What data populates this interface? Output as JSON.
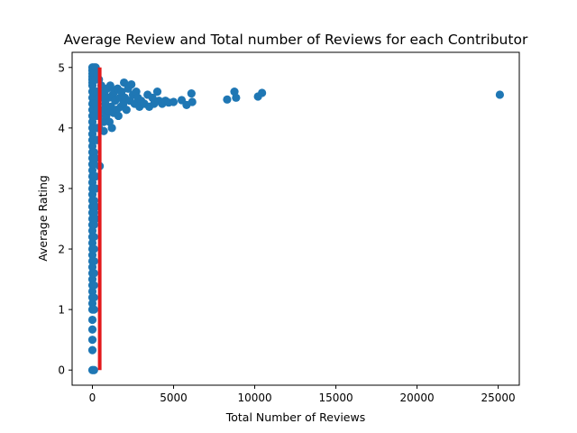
{
  "chart_data": {
    "type": "scatter",
    "title": "Average Review and Total number of Reviews for each Contributor",
    "xlabel": "Total Number of Reviews",
    "ylabel": "Average Rating",
    "xlim": [
      -1250,
      26300
    ],
    "ylim": [
      -0.25,
      5.25
    ],
    "xticks": [
      0,
      5000,
      10000,
      15000,
      20000,
      25000
    ],
    "yticks": [
      0,
      1,
      2,
      3,
      4,
      5
    ],
    "grid": false,
    "legend": "none",
    "colors": {
      "points": "#1f77b4",
      "threshold_line": "#e31a1c"
    },
    "threshold_line": {
      "x": 450,
      "y_range": [
        0,
        5
      ]
    },
    "points": [
      [
        0,
        5
      ],
      [
        0,
        4.95
      ],
      [
        0,
        4.9
      ],
      [
        0,
        4.85
      ],
      [
        0,
        4.8
      ],
      [
        0,
        4.75
      ],
      [
        0,
        4.7
      ],
      [
        0,
        4.6
      ],
      [
        0,
        4.5
      ],
      [
        0,
        4.4
      ],
      [
        0,
        4.3
      ],
      [
        0,
        4.2
      ],
      [
        0,
        4.1
      ],
      [
        0,
        4
      ],
      [
        0,
        3.9
      ],
      [
        0,
        3.8
      ],
      [
        0,
        3.7
      ],
      [
        0,
        3.6
      ],
      [
        0,
        3.5
      ],
      [
        0,
        3.4
      ],
      [
        0,
        3.3
      ],
      [
        0,
        3.2
      ],
      [
        0,
        3.1
      ],
      [
        0,
        3
      ],
      [
        0,
        2.9
      ],
      [
        0,
        2.8
      ],
      [
        0,
        2.7
      ],
      [
        0,
        2.6
      ],
      [
        0,
        2.5
      ],
      [
        0,
        2.4
      ],
      [
        0,
        2.3
      ],
      [
        0,
        2.2
      ],
      [
        0,
        2.1
      ],
      [
        0,
        2
      ],
      [
        0,
        1.9
      ],
      [
        0,
        1.8
      ],
      [
        0,
        1.7
      ],
      [
        0,
        1.6
      ],
      [
        0,
        1.5
      ],
      [
        0,
        1.4
      ],
      [
        0,
        1.3
      ],
      [
        0,
        1.2
      ],
      [
        0,
        1.1
      ],
      [
        0,
        1
      ],
      [
        0,
        0.83
      ],
      [
        0,
        0.67
      ],
      [
        0,
        0.5
      ],
      [
        0,
        0.33
      ],
      [
        0,
        0
      ],
      [
        100,
        5
      ],
      [
        100,
        4.9
      ],
      [
        100,
        4.8
      ],
      [
        100,
        4.6
      ],
      [
        100,
        4.4
      ],
      [
        100,
        4.2
      ],
      [
        100,
        4
      ],
      [
        100,
        3.8
      ],
      [
        100,
        3.6
      ],
      [
        100,
        3.4
      ],
      [
        100,
        3.2
      ],
      [
        100,
        3
      ],
      [
        100,
        2.8
      ],
      [
        100,
        2.6
      ],
      [
        100,
        2.4
      ],
      [
        100,
        2.2
      ],
      [
        100,
        2
      ],
      [
        100,
        1.8
      ],
      [
        100,
        1.6
      ],
      [
        100,
        1.4
      ],
      [
        100,
        1.2
      ],
      [
        100,
        1
      ],
      [
        100,
        0
      ],
      [
        200,
        5
      ],
      [
        200,
        4.8
      ],
      [
        200,
        4.6
      ],
      [
        200,
        4.4
      ],
      [
        200,
        4.2
      ],
      [
        200,
        4
      ],
      [
        200,
        3.8
      ],
      [
        200,
        3.5
      ],
      [
        200,
        3.2
      ],
      [
        200,
        3
      ],
      [
        200,
        2.7
      ],
      [
        200,
        2.5
      ],
      [
        300,
        4.9
      ],
      [
        300,
        4.6
      ],
      [
        300,
        4.3
      ],
      [
        300,
        4
      ],
      [
        300,
        3.8
      ],
      [
        400,
        4.8
      ],
      [
        400,
        4.5
      ],
      [
        400,
        4.2
      ],
      [
        400,
        4
      ],
      [
        450,
        3.37
      ],
      [
        550,
        4.7
      ],
      [
        600,
        4.5
      ],
      [
        650,
        4.3
      ],
      [
        700,
        4.1
      ],
      [
        700,
        3.95
      ],
      [
        750,
        4.6
      ],
      [
        800,
        4.4
      ],
      [
        850,
        4.2
      ],
      [
        900,
        4.65
      ],
      [
        950,
        4.3
      ],
      [
        1000,
        4.5
      ],
      [
        1050,
        4.1
      ],
      [
        1100,
        4.7
      ],
      [
        1150,
        4.35
      ],
      [
        1200,
        4.0
      ],
      [
        1250,
        4.55
      ],
      [
        1300,
        4.25
      ],
      [
        1350,
        4.6
      ],
      [
        1400,
        4.45
      ],
      [
        1500,
        4.3
      ],
      [
        1550,
        4.65
      ],
      [
        1600,
        4.2
      ],
      [
        1700,
        4.5
      ],
      [
        1750,
        4.35
      ],
      [
        1800,
        4.6
      ],
      [
        1900,
        4.4
      ],
      [
        1950,
        4.75
      ],
      [
        2000,
        4.5
      ],
      [
        2100,
        4.3
      ],
      [
        2200,
        4.65
      ],
      [
        2300,
        4.45
      ],
      [
        2400,
        4.72
      ],
      [
        2500,
        4.55
      ],
      [
        2600,
        4.4
      ],
      [
        2700,
        4.6
      ],
      [
        2800,
        4.5
      ],
      [
        2900,
        4.35
      ],
      [
        3000,
        4.45
      ],
      [
        3200,
        4.4
      ],
      [
        3400,
        4.55
      ],
      [
        3500,
        4.35
      ],
      [
        3700,
        4.5
      ],
      [
        3800,
        4.4
      ],
      [
        4000,
        4.6
      ],
      [
        4100,
        4.45
      ],
      [
        4300,
        4.4
      ],
      [
        4500,
        4.45
      ],
      [
        4700,
        4.42
      ],
      [
        5000,
        4.43
      ],
      [
        5500,
        4.46
      ],
      [
        5800,
        4.38
      ],
      [
        6100,
        4.57
      ],
      [
        6150,
        4.43
      ],
      [
        8300,
        4.47
      ],
      [
        8750,
        4.6
      ],
      [
        8850,
        4.5
      ],
      [
        10200,
        4.52
      ],
      [
        10450,
        4.58
      ],
      [
        25100,
        4.55
      ]
    ]
  }
}
